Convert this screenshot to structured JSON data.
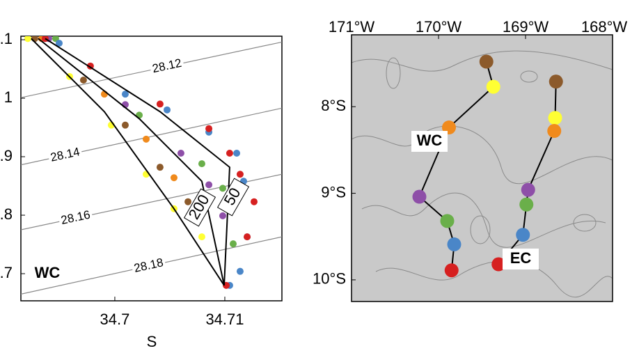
{
  "chart_data": [
    {
      "type": "scatter",
      "xlabel": "S",
      "xlim": [
        34.69146,
        34.71519
      ],
      "ylim": [
        0.6536,
        1.106
      ],
      "xticks": [
        34.7,
        34.71
      ],
      "yticks": [
        {
          "value": 1.1,
          "label": ".1"
        },
        1,
        {
          "value": 0.9,
          "label": ".9"
        },
        {
          "value": 0.8,
          "label": ".8"
        },
        {
          "value": 0.7,
          "label": ".7"
        }
      ],
      "series": [
        {
          "color": "#ffff33",
          "x": [
            34.69209,
            34.69589,
            34.69968,
            34.70285,
            34.70538,
            34.70791
          ],
          "y": [
            1.102,
            1.037,
            0.954,
            0.87,
            0.811,
            0.763
          ]
        },
        {
          "color": "#8c5a2b",
          "x": [
            34.69272,
            34.69715,
            34.70095,
            34.70411,
            34.70665
          ],
          "y": [
            1.102,
            1.031,
            0.954,
            0.882,
            0.823
          ]
        },
        {
          "color": "#f08a1c",
          "x": [
            34.69335,
            34.69905,
            34.70285,
            34.70538,
            34.7076
          ],
          "y": [
            1.102,
            1.007,
            0.93,
            0.864,
            0.811
          ]
        },
        {
          "color": "#8e4fa8",
          "x": [
            34.69399,
            34.70095,
            34.70601,
            34.70855,
            34.70981
          ],
          "y": [
            1.102,
            0.989,
            0.906,
            0.852,
            0.799
          ]
        },
        {
          "color": "#6aaf4a",
          "x": [
            34.69462,
            34.70222,
            34.70791,
            34.70981,
            34.71076
          ],
          "y": [
            1.102,
            0.971,
            0.888,
            0.846,
            0.751
          ]
        },
        {
          "color": "#4a86c8",
          "x": [
            34.69494,
            34.70095,
            34.70475,
            34.70855,
            34.71108,
            34.71171,
            34.71203,
            34.71139,
            34.71044
          ],
          "y": [
            1.094,
            1.007,
            0.98,
            0.942,
            0.906,
            0.858,
            0.763,
            0.704,
            0.68
          ]
        },
        {
          "color": "#d62020",
          "x": [
            34.69367,
            34.69778,
            34.70411,
            34.70855,
            34.71044,
            34.71139,
            34.71266,
            34.71203,
            34.71013
          ],
          "y": [
            1.102,
            1.055,
            0.99,
            0.948,
            0.906,
            0.87,
            0.823,
            0.763,
            0.68
          ]
        }
      ],
      "lines": [
        {
          "color": "#000000",
          "x": [
            34.6924,
            34.69905,
            34.70538,
            34.70994
          ],
          "y": [
            1.102,
            0.977,
            0.811,
            0.68
          ]
        },
        {
          "color": "#000000",
          "x": [
            34.69304,
            34.70222,
            34.70791,
            34.70994
          ],
          "y": [
            1.102,
            0.965,
            0.858,
            0.68
          ]
        },
        {
          "color": "#000000",
          "x": [
            34.69367,
            34.70411,
            34.71044,
            34.70994
          ],
          "y": [
            1.102,
            0.977,
            0.882,
            0.68
          ]
        }
      ],
      "contours": [
        {
          "level": 28.12,
          "x": [
            34.69146,
            34.71519
          ],
          "y": [
            1.001,
            1.096
          ]
        },
        {
          "level": 28.14,
          "x": [
            34.69146,
            34.71519
          ],
          "y": [
            0.886,
            0.983
          ]
        },
        {
          "level": 28.16,
          "x": [
            34.69146,
            34.71519
          ],
          "y": [
            0.775,
            0.87
          ]
        },
        {
          "level": 28.18,
          "x": [
            34.69146,
            34.71519
          ],
          "y": [
            0.665,
            0.763
          ]
        }
      ],
      "annotations": [
        "50",
        "200",
        "WC"
      ]
    },
    {
      "type": "map",
      "xlim": [
        -171,
        -168
      ],
      "ylim": [
        -10.25,
        -7.17
      ],
      "xticks": [
        {
          "value": -171,
          "label": "171°W"
        },
        {
          "value": -170,
          "label": "170°W"
        },
        {
          "value": -169,
          "label": "169°W"
        },
        {
          "value": -168,
          "label": "168°W"
        }
      ],
      "yticks": [
        {
          "value": -8,
          "label": "8°S"
        },
        {
          "value": -9,
          "label": "9°S"
        },
        {
          "value": -10,
          "label": "10°S"
        }
      ],
      "groups": [
        {
          "label": "WC",
          "x": [
            -169.45,
            -169.37,
            -169.88,
            -170.22,
            -169.9,
            -169.82,
            -169.85
          ],
          "y": [
            -7.48,
            -7.77,
            -8.24,
            -9.04,
            -9.32,
            -9.59,
            -9.89
          ],
          "colors": [
            "#8c5a2b",
            "#ffff33",
            "#f08a1c",
            "#8e4fa8",
            "#6aaf4a",
            "#4a86c8",
            "#d62020"
          ]
        },
        {
          "label": "EC",
          "x": [
            -168.65,
            -168.66,
            -168.67,
            -168.97,
            -168.99,
            -169.03,
            -169.31
          ],
          "y": [
            -7.71,
            -8.13,
            -8.28,
            -8.96,
            -9.13,
            -9.48,
            -9.82
          ],
          "colors": [
            "#8c5a2b",
            "#ffff33",
            "#f08a1c",
            "#8e4fa8",
            "#6aaf4a",
            "#4a86c8",
            "#d62020"
          ]
        }
      ]
    }
  ]
}
